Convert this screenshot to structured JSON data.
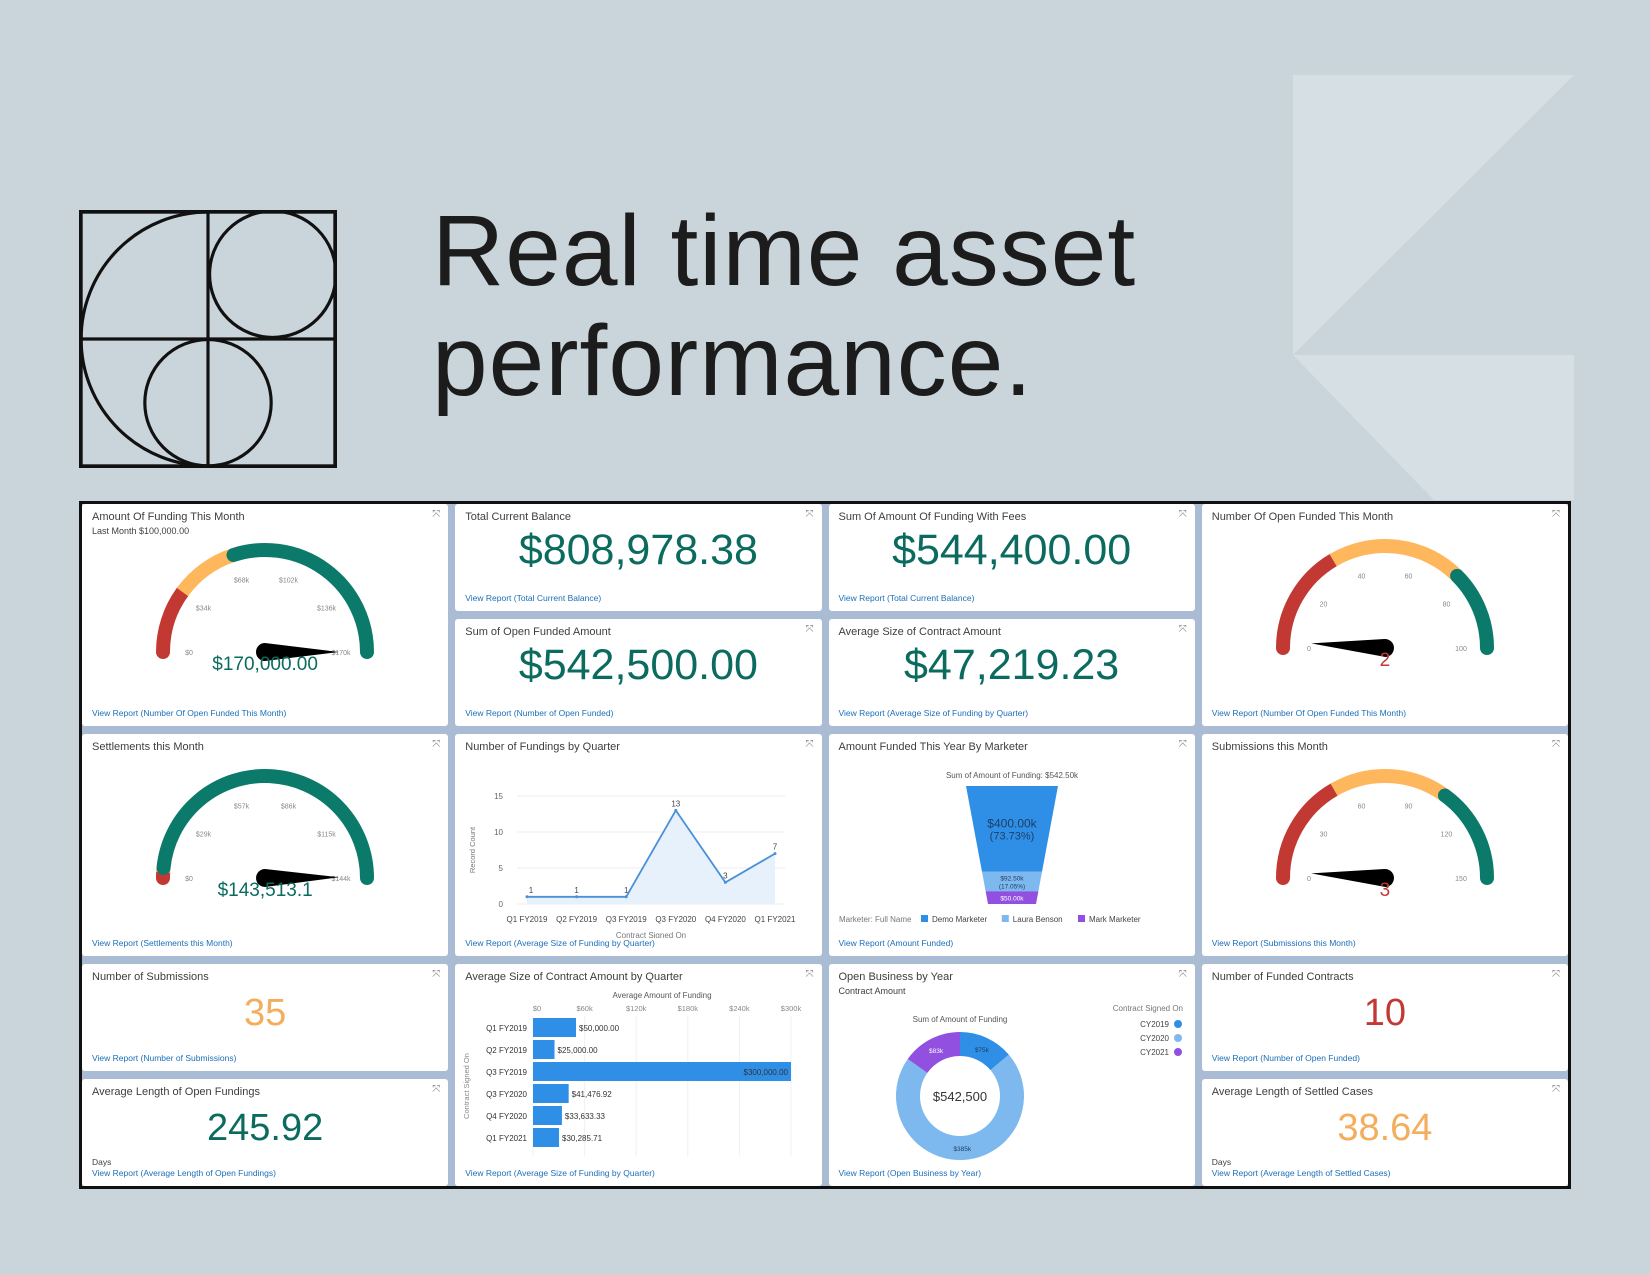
{
  "header": {
    "title_line1": "Real time asset",
    "title_line2": "performance."
  },
  "cards": {
    "funding_month": {
      "title": "Amount Of Funding This Month",
      "subtitle": "Last Month $100,000.00",
      "value": "$170,000.00",
      "link": "View Report (Number Of Open Funded This Month)"
    },
    "total_balance": {
      "title": "Total Current Balance",
      "value": "$808,978.38",
      "link": "View Report (Total Current Balance)"
    },
    "funding_fees": {
      "title": "Sum Of Amount Of Funding With Fees",
      "value": "$544,400.00",
      "link": "View Report (Total Current Balance)"
    },
    "open_funded_month": {
      "title": "Number Of Open Funded This Month",
      "value": "2",
      "link": "View Report (Number Of Open Funded This Month)"
    },
    "open_funded_amount": {
      "title": "Sum of Open Funded Amount",
      "value": "$542,500.00",
      "link": "View Report (Number of Open Funded)"
    },
    "avg_contract": {
      "title": "Average Size of Contract Amount",
      "value": "$47,219.23",
      "link": "View Report (Average Size of Funding by Quarter)"
    },
    "settlements": {
      "title": "Settlements this Month",
      "value": "$143,513.1",
      "link": "View Report (Settlements this Month)"
    },
    "fundings_quarter": {
      "title": "Number of Fundings by Quarter",
      "link": "View Report (Average Size of Funding by Quarter)"
    },
    "marketer": {
      "title": "Amount Funded This Year By Marketer",
      "link": "View Report (Amount Funded)"
    },
    "submissions_month": {
      "title": "Submissions this Month",
      "value": "3",
      "link": "View Report (Submissions this Month)"
    },
    "num_submissions": {
      "title": "Number of Submissions",
      "value": "35",
      "link": "View Report (Number of Submissions)"
    },
    "avg_contract_quarter": {
      "title": "Average Size of Contract Amount by Quarter",
      "link": "View Report (Average Size of Funding by Quarter)"
    },
    "open_business": {
      "title": "Open Business by Year",
      "subtitle": "Contract Amount",
      "link": "View Report (Open Business by Year)"
    },
    "funded_contracts": {
      "title": "Number of Funded Contracts",
      "value": "10",
      "link": "View Report (Number of Open Funded)"
    },
    "avg_open": {
      "title": "Average Length of Open Fundings",
      "value": "245.92",
      "unit": "Days",
      "link": "View Report (Average Length of Open Fundings)"
    },
    "avg_settled": {
      "title": "Average Length of Settled Cases",
      "value": "38.64",
      "unit": "Days",
      "link": "View Report (Average Length of Settled Cases)"
    }
  },
  "colors": {
    "teal": "#0b6b5f",
    "red": "#c23934",
    "orange": "#f4ad5c",
    "blue": "#2f8fe6",
    "light_blue": "#7db9ee",
    "purple": "#9150e0",
    "link": "#1b6fb8"
  },
  "chart_data": [
    {
      "type": "gauge",
      "id": "funding_month",
      "min": 0,
      "max": 170000,
      "value": 170000,
      "ticks": [
        "$0",
        "$34k",
        "$68k",
        "$102k",
        "$136k",
        "$170k"
      ],
      "bands": [
        {
          "to": 34000,
          "color": "#c23934"
        },
        {
          "to": 68000,
          "color": "#ffb75d"
        },
        {
          "to": 170000,
          "color": "#0b7a6b"
        }
      ]
    },
    {
      "type": "gauge",
      "id": "open_funded_month",
      "min": 0,
      "max": 100,
      "value": 2,
      "ticks": [
        "0",
        "20",
        "40",
        "60",
        "80",
        "100"
      ],
      "bands": [
        {
          "to": 33,
          "color": "#c23934"
        },
        {
          "to": 75,
          "color": "#ffb75d"
        },
        {
          "to": 100,
          "color": "#0b7a6b"
        }
      ]
    },
    {
      "type": "gauge",
      "id": "settlements",
      "min": 0,
      "max": 144000,
      "value": 143513.1,
      "ticks": [
        "$0",
        "$29k",
        "$57k",
        "$86k",
        "$115k",
        "$144k"
      ],
      "bands": [
        {
          "to": 2500,
          "color": "#c23934"
        },
        {
          "to": 4500,
          "color": "#ffb75d"
        },
        {
          "to": 144000,
          "color": "#0b7a6b"
        }
      ]
    },
    {
      "type": "gauge",
      "id": "submissions_month",
      "min": 0,
      "max": 150,
      "value": 3,
      "ticks": [
        "0",
        "30",
        "60",
        "90",
        "120",
        "150"
      ],
      "bands": [
        {
          "to": 50,
          "color": "#c23934"
        },
        {
          "to": 105,
          "color": "#ffb75d"
        },
        {
          "to": 150,
          "color": "#0b7a6b"
        }
      ]
    },
    {
      "type": "line",
      "id": "fundings_quarter",
      "title": "Number of Fundings by Quarter",
      "categories": [
        "Q1 FY2019",
        "Q2 FY2019",
        "Q3 FY2019",
        "Q3 FY2020",
        "Q4 FY2020",
        "Q1 FY2021"
      ],
      "values": [
        1,
        1,
        1,
        13,
        3,
        7
      ],
      "xlabel": "Contract Signed On",
      "ylabel": "Record Count",
      "ylim": [
        0,
        15
      ],
      "yticks": [
        0,
        5,
        10,
        15
      ],
      "grid": true
    },
    {
      "type": "funnel",
      "id": "marketer",
      "title": "Amount Funded This Year By Marketer",
      "header": "Sum of Amount of Funding: $542.50k",
      "legend_title": "Marketer: Full Name",
      "series": [
        {
          "name": "Demo Marketer",
          "value": 400000,
          "label": "$400.00k",
          "pct": "(73.73%)",
          "color": "#2f8fe6"
        },
        {
          "name": "Laura Benson",
          "value": 92500,
          "label": "$92.50k",
          "pct": "(17.05%)",
          "color": "#7db9ee"
        },
        {
          "name": "Mark Marketer",
          "value": 50000,
          "label": "$50.00k",
          "pct": "",
          "color": "#9150e0"
        }
      ]
    },
    {
      "type": "bar",
      "id": "avg_contract_quarter",
      "title": "Average Size of Contract Amount by Quarter",
      "categories": [
        "Q1 FY2019",
        "Q2 FY2019",
        "Q3 FY2019",
        "Q3 FY2020",
        "Q4 FY2020",
        "Q1 FY2021"
      ],
      "values": [
        50000,
        25000,
        300000,
        41476.92,
        33633.33,
        30285.71
      ],
      "labels": [
        "$50,000.00",
        "$25,000.00",
        "$300,000.00",
        "$41,476.92",
        "$33,633.33",
        "$30,285.71"
      ],
      "xlabel": "Average Amount of Funding",
      "ylabel": "Contract Signed On",
      "xlim": [
        0,
        300000
      ],
      "xticks": [
        0,
        60000,
        120000,
        180000,
        240000,
        300000
      ],
      "xtick_labels": [
        "$0",
        "$60k",
        "$120k",
        "$180k",
        "$240k",
        "$300k"
      ]
    },
    {
      "type": "pie",
      "id": "open_business",
      "title": "Open Business by Year",
      "header": "Sum of Amount of Funding",
      "center_label": "$542,500",
      "legend_title": "Contract Signed On",
      "legend": "top-right",
      "series": [
        {
          "name": "CY2019",
          "value": 75000,
          "label": "$75k",
          "color": "#2f8fe6"
        },
        {
          "name": "CY2020",
          "value": 385000,
          "label": "$385k",
          "color": "#7db9ee"
        },
        {
          "name": "CY2021",
          "value": 82500,
          "label": "$83k",
          "color": "#9150e0"
        }
      ]
    }
  ]
}
